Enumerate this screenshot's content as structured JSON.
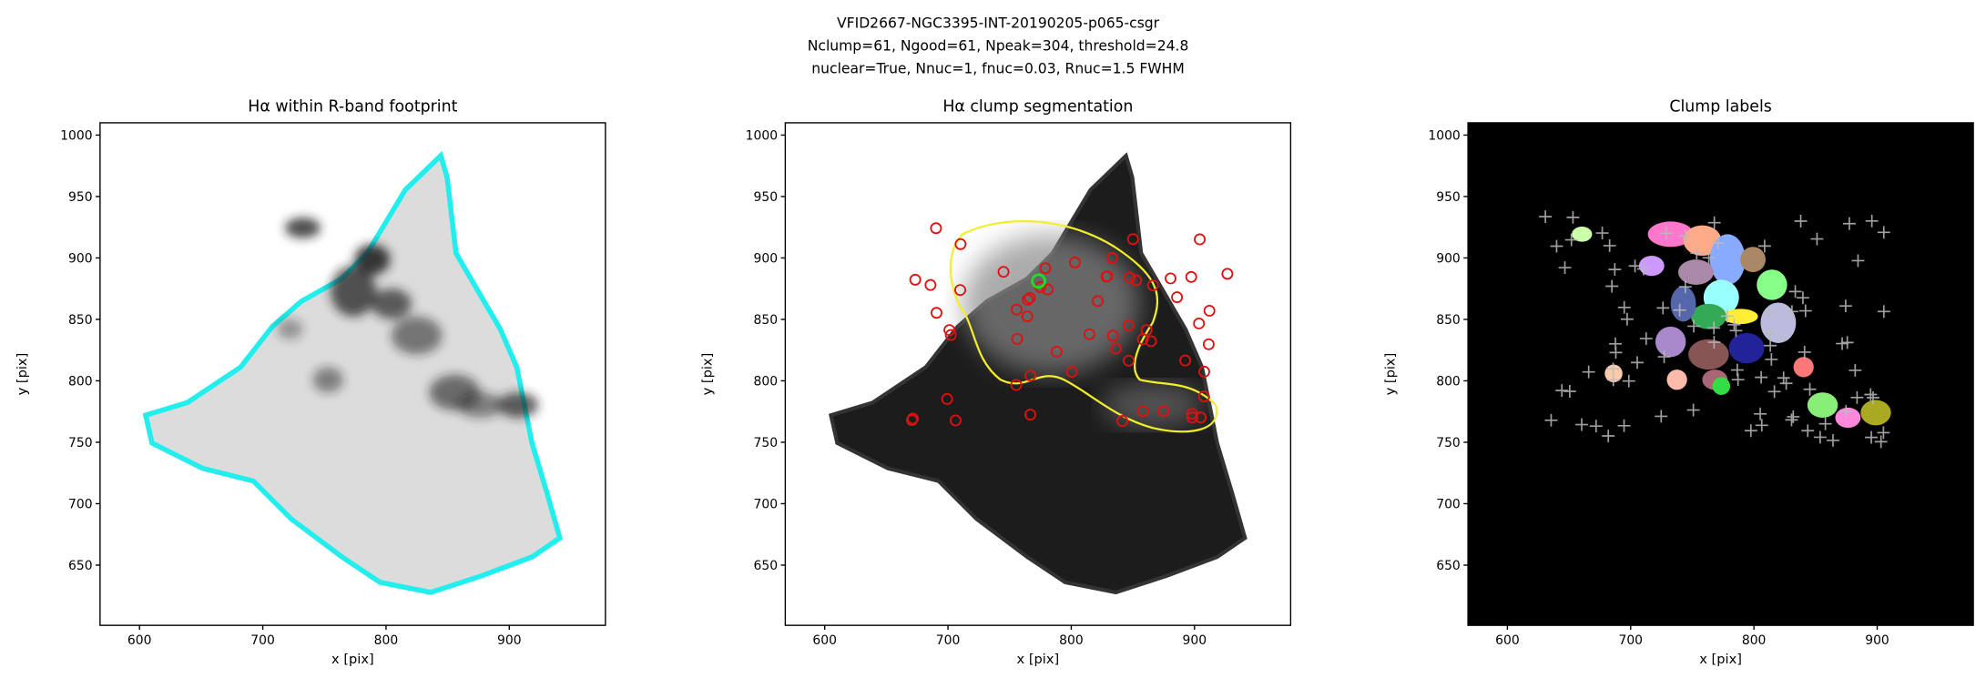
{
  "suptitle": [
    "VFID2667-NGC3395-INT-20190205-p065-csgr",
    "Nclump=61, Ngood=61, Npeak=304, threshold=24.8",
    "nuclear=True, Nnuc=1, fnuc=0.03, Rnuc=1.5 FWHM"
  ],
  "chart_data": [
    {
      "type": "image",
      "title": "Hα within R-band footprint",
      "xlabel": "x [pix]",
      "ylabel": "y [pix]",
      "xlim": [
        568,
        978
      ],
      "ylim": [
        601,
        1010
      ],
      "xticks": [
        600,
        700,
        800,
        900
      ],
      "yticks": [
        650,
        700,
        750,
        800,
        850,
        900,
        950,
        1000
      ],
      "facecolor": "#ffffff"
    },
    {
      "type": "image",
      "title": "Hα clump segmentation",
      "xlabel": "x [pix]",
      "ylabel": "y [pix]",
      "xlim": [
        568,
        978
      ],
      "ylim": [
        601,
        1010
      ],
      "xticks": [
        600,
        700,
        800,
        900
      ],
      "yticks": [
        650,
        700,
        750,
        800,
        850,
        900,
        950,
        1000
      ],
      "facecolor": "#ffffff"
    },
    {
      "type": "image",
      "title": "Clump labels",
      "xlabel": "x [pix]",
      "ylabel": "y [pix]",
      "xlim": [
        568,
        978
      ],
      "ylim": [
        601,
        1010
      ],
      "xticks": [
        600,
        700,
        800,
        900
      ],
      "yticks": [
        650,
        700,
        750,
        800,
        850,
        900,
        950,
        1000
      ],
      "facecolor": "#000000"
    }
  ]
}
